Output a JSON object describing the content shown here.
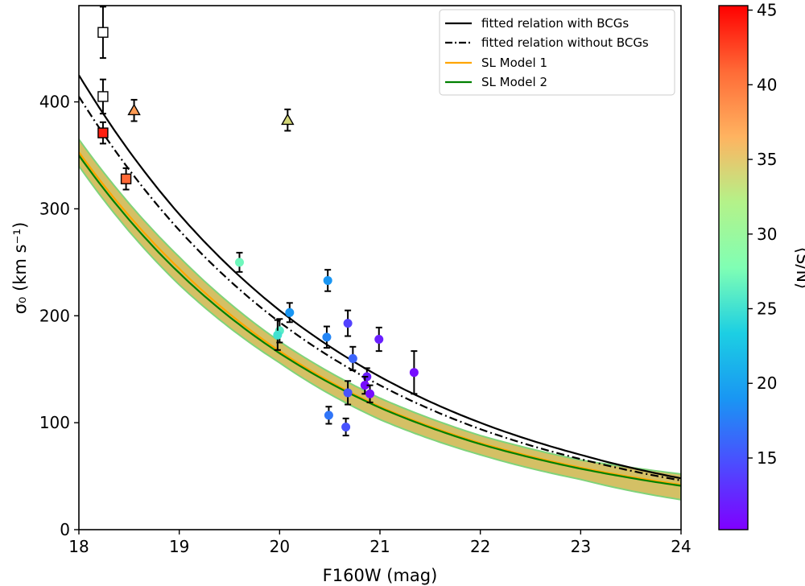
{
  "chart_data": {
    "type": "scatter",
    "title": "",
    "xlabel": "F160W (mag)",
    "ylabel": "σ₀ (km s⁻¹)",
    "xlim": [
      18,
      24
    ],
    "ylim": [
      0,
      490
    ],
    "x_ticks": [
      18,
      19,
      20,
      21,
      22,
      23,
      24
    ],
    "y_ticks": [
      0,
      100,
      200,
      300,
      400
    ],
    "x_tick_labels": [
      "18",
      "19",
      "20",
      "21",
      "22",
      "23",
      "24"
    ],
    "y_tick_labels": [
      "0",
      "100",
      "200",
      "300",
      "400"
    ],
    "colorbar": {
      "label": "⟨S/N⟩",
      "range": [
        10.2,
        45.3
      ],
      "ticks": [
        15,
        20,
        25,
        30,
        35,
        40,
        45
      ],
      "tick_labels": [
        "15",
        "20",
        "25",
        "30",
        "35",
        "40",
        "45"
      ],
      "colormap": "rainbow"
    },
    "legend": {
      "position": "top-right",
      "entries": [
        {
          "label": "fitted relation with BCGs",
          "color": "#000000",
          "style": "solid"
        },
        {
          "label": "fitted relation without BCGs",
          "color": "#000000",
          "style": "dashdot"
        },
        {
          "label": "SL Model 1",
          "color": "#ffa500",
          "style": "solid"
        },
        {
          "label": "SL Model 2",
          "color": "#008000",
          "style": "solid"
        }
      ]
    },
    "curves": [
      {
        "name": "fitted relation with BCGs",
        "color": "#000000",
        "style": "solid",
        "x": [
          18,
          19,
          20,
          21,
          22,
          23,
          24
        ],
        "y": [
          425,
          295,
          205,
          143,
          100,
          70,
          48
        ]
      },
      {
        "name": "fitted relation without BCGs",
        "color": "#000000",
        "style": "dashdot",
        "x": [
          18,
          19,
          20,
          21,
          22,
          23,
          24
        ],
        "y": [
          405,
          280,
          194,
          135,
          94,
          66,
          46
        ]
      },
      {
        "name": "SL Model 1",
        "color": "#ffa500",
        "style": "solid",
        "x": [
          18,
          19,
          20,
          21,
          22,
          23,
          24
        ],
        "y": [
          353,
          244,
          167,
          115,
          81,
          58,
          42
        ]
      },
      {
        "name": "SL Model 2",
        "color": "#008000",
        "style": "solid",
        "x": [
          18,
          19,
          20,
          21,
          22,
          23,
          24
        ],
        "y": [
          350,
          240,
          165,
          114,
          80,
          57,
          41
        ]
      }
    ],
    "band": {
      "name": "SL model uncertainty",
      "fill": "#c8ae3a",
      "edge": "#7fd37a",
      "x": [
        18,
        19,
        20,
        21,
        22,
        23,
        24
      ],
      "upper": [
        365,
        255,
        176,
        123,
        88,
        65,
        52
      ],
      "lower": [
        340,
        229,
        156,
        103,
        70,
        47,
        28
      ]
    },
    "squares": [
      {
        "x": 18.24,
        "y": 465,
        "err": 24,
        "sn": null
      },
      {
        "x": 18.24,
        "y": 405,
        "err": 16,
        "sn": null
      },
      {
        "x": 18.24,
        "y": 371,
        "err": 10,
        "sn": 44
      },
      {
        "x": 18.47,
        "y": 328,
        "err": 10,
        "sn": 41
      }
    ],
    "triangles": [
      {
        "x": 18.55,
        "y": 392,
        "err": 10,
        "sn": 38
      },
      {
        "x": 20.08,
        "y": 383,
        "err": 10,
        "sn": 34
      }
    ],
    "circles": [
      {
        "x": 19.6,
        "y": 250,
        "err": 9,
        "sn": 27
      },
      {
        "x": 20.0,
        "y": 186,
        "err": 11,
        "sn": 26
      },
      {
        "x": 19.98,
        "y": 182,
        "err": 14,
        "sn": 25
      },
      {
        "x": 20.1,
        "y": 203,
        "err": 9,
        "sn": 19
      },
      {
        "x": 20.48,
        "y": 233,
        "err": 10,
        "sn": 19
      },
      {
        "x": 20.47,
        "y": 180,
        "err": 10,
        "sn": 18
      },
      {
        "x": 20.68,
        "y": 193,
        "err": 12,
        "sn": 14
      },
      {
        "x": 20.73,
        "y": 160,
        "err": 11,
        "sn": 16
      },
      {
        "x": 20.99,
        "y": 178,
        "err": 11,
        "sn": 12
      },
      {
        "x": 20.87,
        "y": 143,
        "err": 8,
        "sn": 12
      },
      {
        "x": 20.85,
        "y": 135,
        "err": 8,
        "sn": 11
      },
      {
        "x": 20.9,
        "y": 127,
        "err": 8,
        "sn": 11
      },
      {
        "x": 20.68,
        "y": 128,
        "err": 11,
        "sn": 15
      },
      {
        "x": 20.49,
        "y": 107,
        "err": 8,
        "sn": 17
      },
      {
        "x": 20.66,
        "y": 96,
        "err": 8,
        "sn": 15
      },
      {
        "x": 21.34,
        "y": 147,
        "err": 20,
        "sn": 11
      }
    ]
  }
}
